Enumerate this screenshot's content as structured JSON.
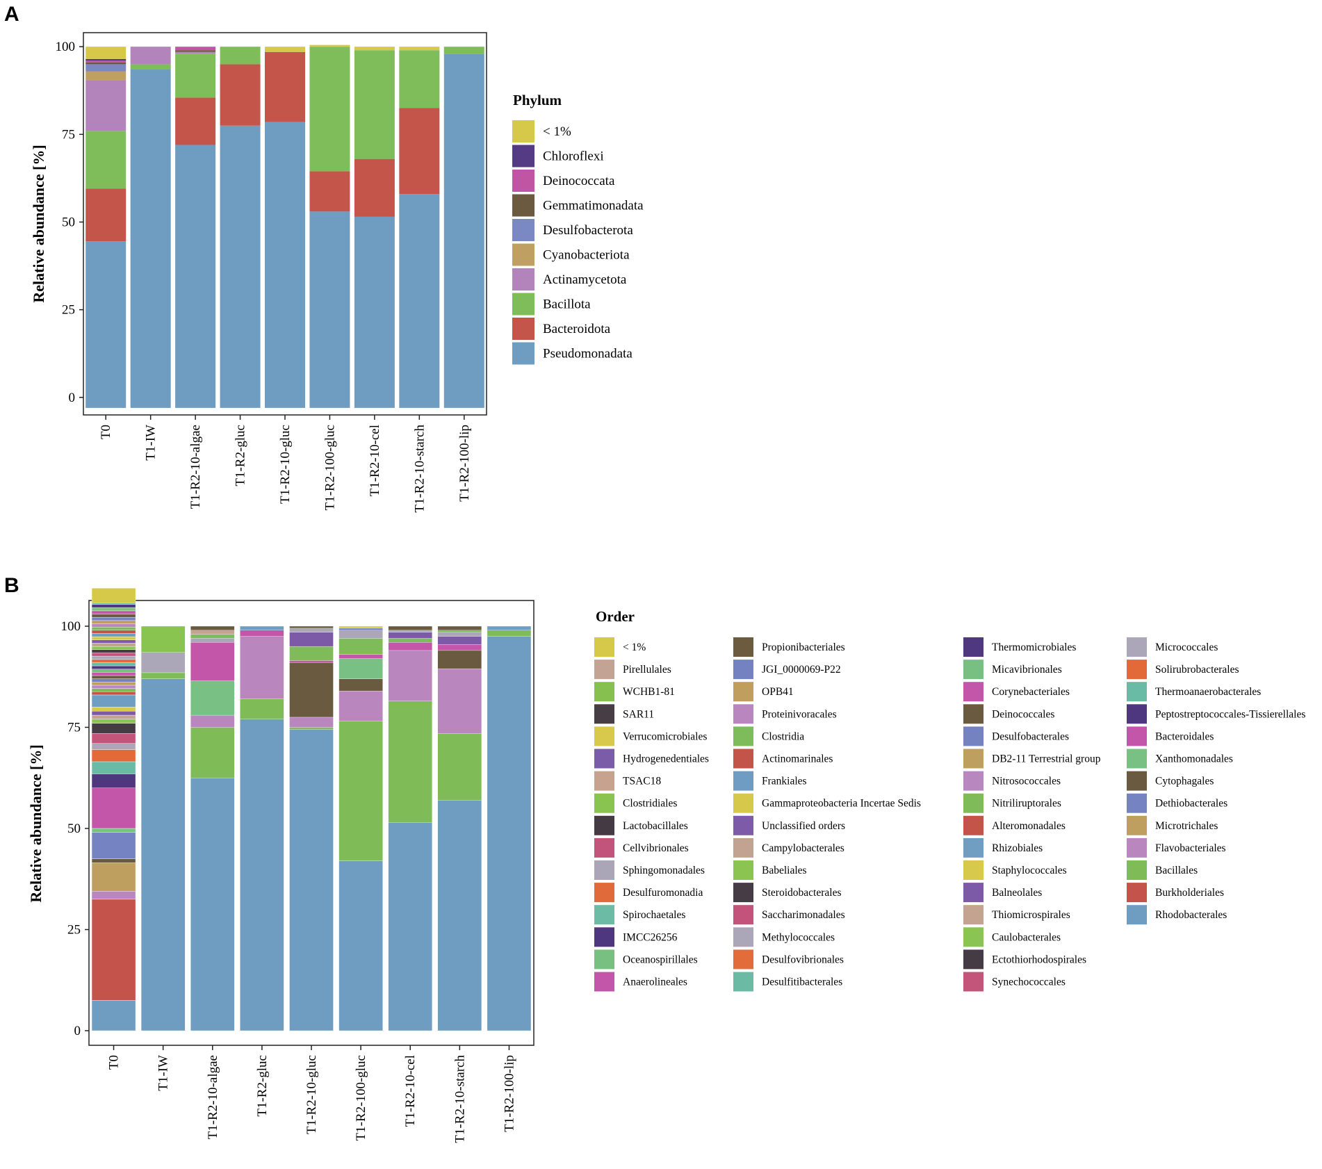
{
  "figure": {
    "label_a": "A",
    "label_b": "B"
  },
  "chart_data": [
    {
      "type": "bar",
      "stacked": true,
      "panel": "A",
      "title": "",
      "xlabel": "",
      "ylabel": "Relative abundance [%]",
      "ylim": [
        -5,
        104
      ],
      "yticks": [
        0,
        25,
        50,
        75,
        100
      ],
      "legend_title": "Phylum",
      "legend_position": "right",
      "categories": [
        "T0",
        "T1-IW",
        "T1-R2-10-algae",
        "T1-R2-gluc",
        "T1-R2-10-gluc",
        "T1-R2-100-gluc",
        "T1-R2-10-cel",
        "T1-R2-10-starch",
        "T1-R2-100-lip"
      ],
      "series": [
        {
          "name": "Pseudomonadata",
          "color": "#6f9dc1",
          "values": [
            44.5,
            93.5,
            72,
            77.5,
            78.5,
            53,
            51.5,
            58,
            98
          ]
        },
        {
          "name": "Bacteroidota",
          "color": "#c4554a",
          "values": [
            15,
            0,
            13.5,
            17.5,
            20,
            11.5,
            16.5,
            24.5,
            0
          ]
        },
        {
          "name": "Bacillota",
          "color": "#7fbd5a",
          "values": [
            16.5,
            1.5,
            12.5,
            5,
            0,
            35.5,
            31,
            16.5,
            2
          ]
        },
        {
          "name": "Actinamycetota",
          "color": "#b384bb",
          "values": [
            14.5,
            5,
            0.5,
            0,
            0,
            0,
            0,
            0,
            0
          ]
        },
        {
          "name": "Cyanobacteriota",
          "color": "#c0a062",
          "values": [
            2.5,
            0,
            0,
            0,
            0,
            0,
            0,
            0,
            0
          ]
        },
        {
          "name": "Desulfobacterota",
          "color": "#7a88c4",
          "values": [
            2,
            0,
            0,
            0,
            0,
            0,
            0,
            0,
            0
          ]
        },
        {
          "name": "Gemmatimonadata",
          "color": "#6b5a3f",
          "values": [
            0.5,
            0,
            0.5,
            0,
            0,
            0,
            0,
            0,
            0
          ]
        },
        {
          "name": "Deinococcata",
          "color": "#c055a3",
          "values": [
            0.5,
            0,
            1,
            0,
            0,
            0,
            0,
            0,
            0
          ]
        },
        {
          "name": "Chloroflexi",
          "color": "#553b84",
          "values": [
            0.5,
            0,
            0,
            0,
            0,
            0,
            0,
            0,
            0
          ]
        },
        {
          "name": "< 1%",
          "color": "#d6c94a",
          "values": [
            3.5,
            0,
            0,
            0,
            1.5,
            0.5,
            1,
            1,
            0
          ]
        }
      ],
      "legend_order": [
        "< 1%",
        "Chloroflexi",
        "Deinococcata",
        "Gemmatimonadata",
        "Desulfobacterota",
        "Cyanobacteriota",
        "Actinamycetota",
        "Bacillota",
        "Bacteroidota",
        "Pseudomonadata"
      ]
    },
    {
      "type": "bar",
      "stacked": true,
      "panel": "B",
      "title": "",
      "xlabel": "",
      "ylabel": "Relative abundance [%]",
      "ylim": [
        -1,
        103
      ],
      "yticks": [
        0,
        25,
        50,
        75,
        100
      ],
      "legend_title": "Order",
      "legend_position": "right",
      "categories": [
        "T0",
        "T1-IW",
        "T1-R2-10-algae",
        "T1-R2-gluc",
        "T1-R2-10-gluc",
        "T1-R2-100-gluc",
        "T1-R2-10-cel",
        "T1-R2-10-starch",
        "T1-R2-100-lip"
      ],
      "legend_columns": [
        [
          {
            "name": "< 1%",
            "color": "#d6c94a"
          },
          {
            "name": "Pirellulales",
            "color": "#c3a394"
          },
          {
            "name": "WCHB1-81",
            "color": "#86c04f"
          },
          {
            "name": "SAR11",
            "color": "#463d45"
          },
          {
            "name": "Verrucomicrobiales",
            "color": "#d8c84c"
          },
          {
            "name": "Hydrogenedentiales",
            "color": "#7b5ca9"
          },
          {
            "name": "TSAC18",
            "color": "#c6a28f"
          },
          {
            "name": "Clostridiales",
            "color": "#89c451"
          },
          {
            "name": "Lactobacillales",
            "color": "#433a44"
          },
          {
            "name": "Cellvibrionales",
            "color": "#c2537a"
          },
          {
            "name": "Sphingomonadales",
            "color": "#aaa6b8"
          },
          {
            "name": "Desulfuromonadia",
            "color": "#e06a3a"
          },
          {
            "name": "Spirochaetales",
            "color": "#6cbba4"
          },
          {
            "name": "IMCC26256",
            "color": "#4e377e"
          },
          {
            "name": "Oceanospirillales",
            "color": "#77c081"
          },
          {
            "name": "Anaerolineales",
            "color": "#c356a9"
          }
        ],
        [
          {
            "name": "Propionibacteriales",
            "color": "#6c5b3f"
          },
          {
            "name": "JGI_0000069-P22",
            "color": "#7482c2"
          },
          {
            "name": "OPB41",
            "color": "#bf9e5e"
          },
          {
            "name": "Proteinivoracales",
            "color": "#b986bf"
          },
          {
            "name": "Clostridia",
            "color": "#7ebb5a"
          },
          {
            "name": "Actinomarinales",
            "color": "#c2544a"
          },
          {
            "name": "Frankiales",
            "color": "#6f9cc2"
          },
          {
            "name": "Gammaproteobacteria Incertae Sedis",
            "color": "#d6c84a"
          },
          {
            "name": "Unclassified orders",
            "color": "#7d5ba8"
          },
          {
            "name": "Campylobacterales",
            "color": "#c2a290"
          },
          {
            "name": "Babeliales",
            "color": "#8cc452"
          },
          {
            "name": "Steroidobacterales",
            "color": "#463c45"
          },
          {
            "name": "Saccharimonadales",
            "color": "#c3537b"
          },
          {
            "name": "Methylococcales",
            "color": "#aba7b8"
          },
          {
            "name": "Desulfovibrionales",
            "color": "#e26c3a"
          },
          {
            "name": "Desulfitibacterales",
            "color": "#6bbaa3"
          }
        ],
        [
          {
            "name": "Thermomicrobiales",
            "color": "#4f387f"
          },
          {
            "name": "Micavibrionales",
            "color": "#78c082"
          },
          {
            "name": "Corynebacteriales",
            "color": "#c356a9"
          },
          {
            "name": "Deinococcales",
            "color": "#6a5a40"
          },
          {
            "name": "Desulfobacterales",
            "color": "#7482c2"
          },
          {
            "name": "DB2-11 Terrestrial group",
            "color": "#bf9f60"
          },
          {
            "name": "Nitrosococcales",
            "color": "#b987bf"
          },
          {
            "name": "Nitriliruptorales",
            "color": "#7fbb58"
          },
          {
            "name": "Alteromonadales",
            "color": "#c4544a"
          },
          {
            "name": "Rhizobiales",
            "color": "#709dc2"
          },
          {
            "name": "Staphylococcales",
            "color": "#d7c94b"
          },
          {
            "name": "Balneolales",
            "color": "#7c5aa8"
          },
          {
            "name": "Thiomicrospirales",
            "color": "#c4a391"
          },
          {
            "name": "Caulobacterales",
            "color": "#8ac452"
          },
          {
            "name": "Ectothiorhodospirales",
            "color": "#453b45"
          },
          {
            "name": "Synechococcales",
            "color": "#c3547a"
          }
        ],
        [
          {
            "name": "Micrococcales",
            "color": "#aba7b9"
          },
          {
            "name": "Solirubrobacterales",
            "color": "#e26a39"
          },
          {
            "name": "Thermoanaerobacterales",
            "color": "#6abba5"
          },
          {
            "name": "Peptostreptococcales-Tissierellales",
            "color": "#4f377f"
          },
          {
            "name": "Bacteroidales",
            "color": "#c356a8"
          },
          {
            "name": "Xanthomonadales",
            "color": "#78c083"
          },
          {
            "name": "Cytophagales",
            "color": "#6a5a40"
          },
          {
            "name": "Dethiobacterales",
            "color": "#7583c3"
          },
          {
            "name": "Microtrichales",
            "color": "#bf9f5f"
          },
          {
            "name": "Flavobacteriales",
            "color": "#b986be"
          },
          {
            "name": "Bacillales",
            "color": "#7fbc58"
          },
          {
            "name": "Burkholderiales",
            "color": "#c4544b"
          },
          {
            "name": "Rhodobacterales",
            "color": "#6f9dc2"
          }
        ]
      ],
      "stacks": [
        [
          {
            "value": 7.5,
            "color": "#6f9dc2"
          },
          {
            "value": 25,
            "color": "#c4544b"
          },
          {
            "value": 2,
            "color": "#b986bf"
          },
          {
            "value": 7,
            "color": "#bf9f5f"
          },
          {
            "value": 1,
            "color": "#6a5a40"
          },
          {
            "value": 6.5,
            "color": "#7583c3"
          },
          {
            "value": 1,
            "color": "#78c083"
          },
          {
            "value": 10,
            "color": "#c356a8"
          },
          {
            "value": 3.5,
            "color": "#4f377f"
          },
          {
            "value": 3,
            "color": "#6abba5"
          },
          {
            "value": 3,
            "color": "#e26a39"
          },
          {
            "value": 1.5,
            "color": "#aba7b9"
          },
          {
            "value": 2.5,
            "color": "#c3547a"
          },
          {
            "value": 2.5,
            "color": "#453b45"
          },
          {
            "value": 1,
            "color": "#8ac452"
          },
          {
            "value": 1,
            "color": "#c4a391"
          },
          {
            "value": 1,
            "color": "#7c5aa8"
          },
          {
            "value": 1,
            "color": "#d7c94b"
          },
          {
            "value": 3,
            "color": "#709dc2"
          },
          {
            "value": 0.8,
            "color": "#c4544a"
          },
          {
            "value": 0.8,
            "color": "#7fbb58"
          },
          {
            "value": 0.8,
            "color": "#b987bf"
          },
          {
            "value": 0.8,
            "color": "#bf9f60"
          },
          {
            "value": 0.8,
            "color": "#7482c2"
          },
          {
            "value": 0.8,
            "color": "#6a5a40"
          },
          {
            "value": 0.8,
            "color": "#c356a9"
          },
          {
            "value": 0.8,
            "color": "#78c082"
          },
          {
            "value": 0.8,
            "color": "#4f387f"
          },
          {
            "value": 0.8,
            "color": "#6bbaa3"
          },
          {
            "value": 0.8,
            "color": "#e26c3a"
          },
          {
            "value": 0.8,
            "color": "#aba7b8"
          },
          {
            "value": 0.8,
            "color": "#c3537b"
          },
          {
            "value": 0.8,
            "color": "#463c45"
          },
          {
            "value": 0.8,
            "color": "#8cc452"
          },
          {
            "value": 0.8,
            "color": "#c2a290"
          },
          {
            "value": 0.8,
            "color": "#7d5ba8"
          },
          {
            "value": 0.8,
            "color": "#d6c84a"
          },
          {
            "value": 0.8,
            "color": "#6f9cc2"
          },
          {
            "value": 0.8,
            "color": "#c2544a"
          },
          {
            "value": 0.8,
            "color": "#7ebb5a"
          },
          {
            "value": 0.8,
            "color": "#b986bf"
          },
          {
            "value": 0.8,
            "color": "#bf9e5e"
          },
          {
            "value": 0.8,
            "color": "#7482c2"
          },
          {
            "value": 0.8,
            "color": "#6c5b3f"
          },
          {
            "value": 0.8,
            "color": "#c356a9"
          },
          {
            "value": 0.8,
            "color": "#77c081"
          },
          {
            "value": 0.8,
            "color": "#4e377e"
          },
          {
            "value": 0.4,
            "color": "#6cbba4"
          },
          {
            "value": 3.6,
            "color": "#d6c94a"
          }
        ],
        [
          {
            "value": 87,
            "color": "#6f9dc2"
          },
          {
            "value": 1.5,
            "color": "#7fbc58"
          },
          {
            "value": 5,
            "color": "#aba7b9"
          },
          {
            "value": 6.5,
            "color": "#89c451"
          }
        ],
        [
          {
            "value": 62.5,
            "color": "#6f9dc2"
          },
          {
            "value": 12.5,
            "color": "#7fbc58"
          },
          {
            "value": 3,
            "color": "#b986be"
          },
          {
            "value": 8.5,
            "color": "#78c083"
          },
          {
            "value": 9.5,
            "color": "#c356a8"
          },
          {
            "value": 1,
            "color": "#aba7b9"
          },
          {
            "value": 1,
            "color": "#7ebb5a"
          },
          {
            "value": 1,
            "color": "#c4a391"
          },
          {
            "value": 1,
            "color": "#6a5a40"
          }
        ],
        [
          {
            "value": 77,
            "color": "#6f9dc2"
          },
          {
            "value": 5,
            "color": "#7fbc58"
          },
          {
            "value": 15.5,
            "color": "#b986be"
          },
          {
            "value": 1.5,
            "color": "#c356a8"
          },
          {
            "value": 1,
            "color": "#709dc2"
          }
        ],
        [
          {
            "value": 74.5,
            "color": "#6f9dc2"
          },
          {
            "value": 0.5,
            "color": "#7fbc58"
          },
          {
            "value": 2.5,
            "color": "#b986be"
          },
          {
            "value": 13.5,
            "color": "#6a5a40"
          },
          {
            "value": 0.5,
            "color": "#c356a8"
          },
          {
            "value": 3.5,
            "color": "#7fbb58"
          },
          {
            "value": 3.5,
            "color": "#7c5aa8"
          },
          {
            "value": 1,
            "color": "#aba7b8"
          },
          {
            "value": 0.5,
            "color": "#6c5b3f"
          }
        ],
        [
          {
            "value": 42,
            "color": "#6f9dc2"
          },
          {
            "value": 34.5,
            "color": "#7fbc58"
          },
          {
            "value": 7.5,
            "color": "#b986be"
          },
          {
            "value": 3,
            "color": "#6a5a40"
          },
          {
            "value": 5,
            "color": "#78c083"
          },
          {
            "value": 1,
            "color": "#c356a8"
          },
          {
            "value": 4,
            "color": "#7fbb58"
          },
          {
            "value": 2,
            "color": "#aba7b9"
          },
          {
            "value": 0.5,
            "color": "#7482c2"
          },
          {
            "value": 0.5,
            "color": "#d6c94a"
          }
        ],
        [
          {
            "value": 51.5,
            "color": "#6f9dc2"
          },
          {
            "value": 30,
            "color": "#7fbc58"
          },
          {
            "value": 12.5,
            "color": "#b986be"
          },
          {
            "value": 2,
            "color": "#c356a8"
          },
          {
            "value": 1,
            "color": "#7ebb5a"
          },
          {
            "value": 1.5,
            "color": "#7c5aa8"
          },
          {
            "value": 0.5,
            "color": "#aba7b9"
          },
          {
            "value": 1,
            "color": "#6a5a40"
          }
        ],
        [
          {
            "value": 57,
            "color": "#6f9dc2"
          },
          {
            "value": 16.5,
            "color": "#7fbc58"
          },
          {
            "value": 16,
            "color": "#b986be"
          },
          {
            "value": 4.5,
            "color": "#6a5a40"
          },
          {
            "value": 1.5,
            "color": "#c356a8"
          },
          {
            "value": 2,
            "color": "#7c5aa8"
          },
          {
            "value": 1,
            "color": "#aba7b9"
          },
          {
            "value": 0.5,
            "color": "#7fbb58"
          },
          {
            "value": 1,
            "color": "#6c5b3f"
          }
        ],
        [
          {
            "value": 97.5,
            "color": "#6f9dc2"
          },
          {
            "value": 1.5,
            "color": "#7fbc58"
          },
          {
            "value": 1,
            "color": "#709dc2"
          }
        ]
      ]
    }
  ]
}
